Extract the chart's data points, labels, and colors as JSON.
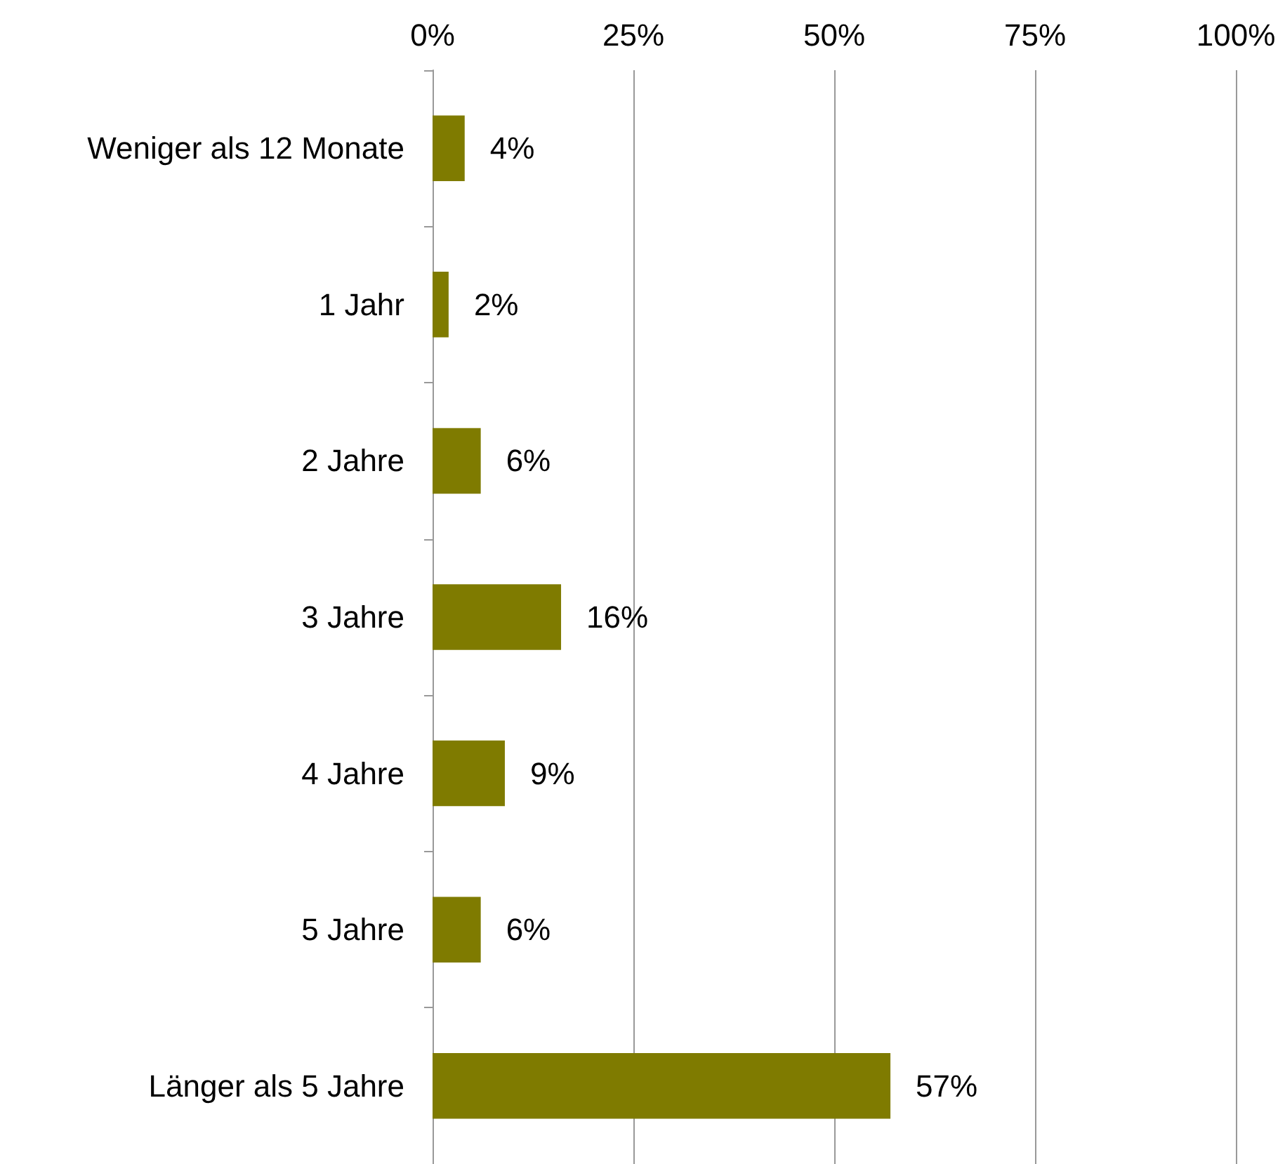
{
  "chart_data": {
    "type": "bar",
    "orientation": "horizontal",
    "categories": [
      "Weniger als 12 Monate",
      "1 Jahr",
      "2 Jahre",
      "3 Jahre",
      "4 Jahre",
      "5 Jahre",
      "Länger als 5 Jahre"
    ],
    "values": [
      4,
      2,
      6,
      16,
      9,
      6,
      57
    ],
    "value_labels": [
      "4%",
      "2%",
      "6%",
      "16%",
      "9%",
      "6%",
      "57%"
    ],
    "color": "#7f7b00",
    "xlim": [
      0,
      100
    ],
    "xticks": [
      {
        "value": 0,
        "label": "0%"
      },
      {
        "value": 25,
        "label": "25%"
      },
      {
        "value": 50,
        "label": "50%"
      },
      {
        "value": 75,
        "label": "75%"
      },
      {
        "value": 100,
        "label": "100%"
      }
    ],
    "grid": "x"
  }
}
